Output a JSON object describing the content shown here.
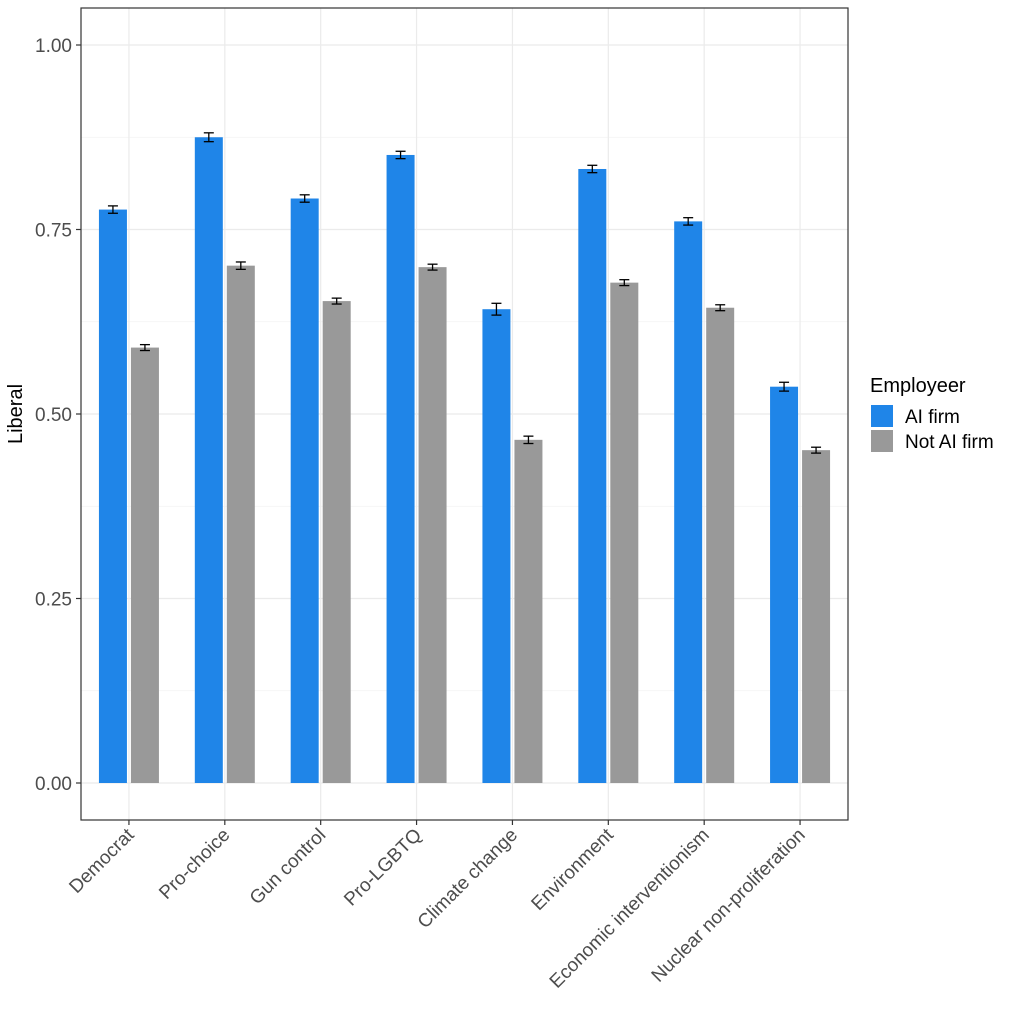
{
  "chart_data": {
    "type": "bar",
    "title": "",
    "xlabel": "",
    "ylabel": "Liberal",
    "ylim": [
      0,
      1.0
    ],
    "y_ticks": [
      "0.00",
      "0.25",
      "0.50",
      "0.75",
      "1.00"
    ],
    "y_tick_values": [
      0,
      0.25,
      0.5,
      0.75,
      1.0
    ],
    "grid": true,
    "categories": [
      "Democrat",
      "Pro-choice",
      "Gun control",
      "Pro-LGBTQ",
      "Climate change",
      "Environment",
      "Economic interventionism",
      "Nuclear non-proliferation"
    ],
    "legend": {
      "title": "Employeer",
      "position": "right"
    },
    "series": [
      {
        "name": "AI firm",
        "color": "#1f85e8",
        "values": [
          0.777,
          0.875,
          0.792,
          0.851,
          0.642,
          0.832,
          0.761,
          0.537
        ],
        "errors": [
          0.005,
          0.006,
          0.005,
          0.005,
          0.008,
          0.005,
          0.005,
          0.006
        ]
      },
      {
        "name": "Not AI firm",
        "color": "#999999",
        "values": [
          0.59,
          0.701,
          0.653,
          0.699,
          0.465,
          0.678,
          0.644,
          0.451
        ],
        "errors": [
          0.004,
          0.005,
          0.004,
          0.004,
          0.005,
          0.004,
          0.004,
          0.004
        ]
      }
    ]
  }
}
